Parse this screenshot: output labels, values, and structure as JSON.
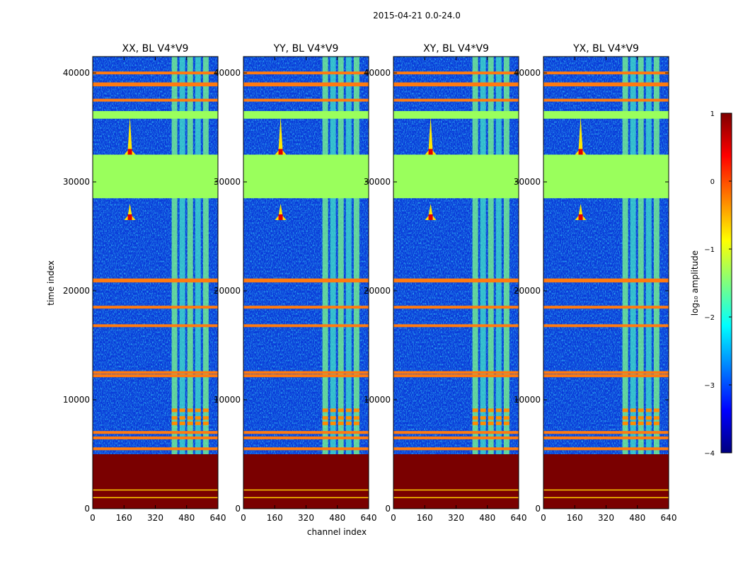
{
  "figure_title": "2015-04-21 0.0-24.0",
  "chart_data": {
    "type": "heatmap",
    "title": "2015-04-21 0.0-24.0",
    "xlabel": "channel index",
    "ylabel": "time index",
    "xlim": [
      0,
      640
    ],
    "ylim": [
      0,
      41500
    ],
    "xticks": [
      0,
      160,
      320,
      480,
      640
    ],
    "yticks": [
      0,
      10000,
      20000,
      30000,
      40000
    ],
    "colorbar": {
      "label": "log₁₀ amplitude",
      "range": [
        -4,
        1
      ],
      "ticks": [
        "1",
        "0",
        "−1",
        "−2",
        "−3",
        "−4"
      ],
      "colormap": [
        "#00007f",
        "#0000ff",
        "#007fff",
        "#00ffff",
        "#7fff7f",
        "#ffff00",
        "#ff7f00",
        "#ff0000",
        "#7f0000"
      ]
    },
    "panels": [
      {
        "title": "XX, BL V4*V9"
      },
      {
        "title": "YY, BL V4*V9"
      },
      {
        "title": "XY, BL V4*V9"
      },
      {
        "title": "YX, BL V4*V9"
      }
    ],
    "features": {
      "saturated_block_time": [
        0,
        5000
      ],
      "flagged_block_time": [
        28500,
        32500
      ],
      "flagged_band_time": [
        35800,
        36500
      ],
      "bright_rows_time": [
        40000,
        39000,
        38900,
        37500,
        21000,
        20900,
        18500,
        16800,
        12500,
        12200,
        7000,
        6500,
        5500
      ],
      "rfi_spikes": [
        {
          "channel": 190,
          "time_from": 32500,
          "time_to": 36000
        },
        {
          "channel": 190,
          "time_from": 26500,
          "time_to": 28000
        }
      ],
      "active_channel_range": [
        400,
        600
      ],
      "colors": {
        "background": "#0a3ad8",
        "flagged": "#9aff5c",
        "saturated": "#7a0000",
        "bright": "#ff7a10"
      }
    }
  }
}
